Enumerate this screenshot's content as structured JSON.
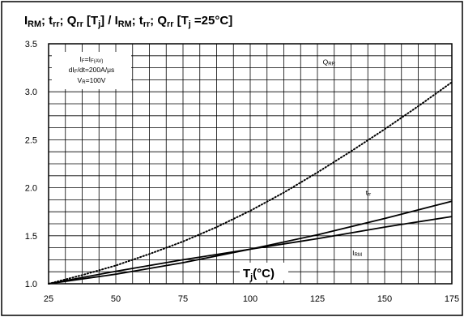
{
  "chart_data": {
    "type": "line",
    "title": {
      "parts": [
        {
          "t": "I"
        },
        {
          "t": "RM",
          "sub": true
        },
        {
          "t": "; t"
        },
        {
          "t": "rr",
          "sub": true
        },
        {
          "t": "; Q"
        },
        {
          "t": "rr",
          "sub": true
        },
        {
          "t": " [T"
        },
        {
          "t": "j",
          "sub": true
        },
        {
          "t": "] / I"
        },
        {
          "t": "RM",
          "sub": true
        },
        {
          "t": "; t"
        },
        {
          "t": "rr",
          "sub": true
        },
        {
          "t": "; Q"
        },
        {
          "t": "rr",
          "sub": true
        },
        {
          "t": " [T"
        },
        {
          "t": "j",
          "sub": true
        },
        {
          "t": " =25°C]"
        }
      ]
    },
    "xlabel": {
      "parts": [
        {
          "t": "T"
        },
        {
          "t": "j",
          "sub": true
        },
        {
          "t": "(°C)"
        }
      ]
    },
    "conditions": [
      [
        {
          "t": "I"
        },
        {
          "t": "F",
          "sub": true
        },
        {
          "t": "=I"
        },
        {
          "t": "F(AV)",
          "sub": true
        }
      ],
      [
        {
          "t": "dI"
        },
        {
          "t": "F",
          "sub": true
        },
        {
          "t": "/dt=200A/μs"
        }
      ],
      [
        {
          "t": "V"
        },
        {
          "t": "R",
          "sub": true
        },
        {
          "t": "=100V"
        }
      ]
    ],
    "xlim": [
      25,
      175
    ],
    "ylim": [
      1.0,
      3.5
    ],
    "x_ticks": [
      25,
      50,
      75,
      100,
      125,
      150,
      175
    ],
    "x_tick_labels": [
      "25",
      "50",
      "75",
      "100",
      "125",
      "150",
      "175"
    ],
    "y_ticks": [
      1.0,
      1.5,
      2.0,
      2.5,
      3.0,
      3.5
    ],
    "y_tick_labels": [
      "1.0",
      "1.5",
      "2.0",
      "2.5",
      "3.0",
      "3.5"
    ],
    "grid": true,
    "series": [
      {
        "id": "qrr",
        "label_parts": [
          {
            "t": "Q"
          },
          {
            "t": "RR",
            "sub": true
          }
        ],
        "style": "dotted",
        "x": [
          25,
          37.5,
          50,
          62.5,
          75,
          87.5,
          100,
          112.5,
          125,
          137.5,
          150,
          162.5,
          175
        ],
        "y": [
          1.0,
          1.09,
          1.19,
          1.31,
          1.44,
          1.59,
          1.76,
          1.95,
          2.16,
          2.38,
          2.61,
          2.85,
          3.1
        ]
      },
      {
        "id": "trr",
        "label_parts": [
          {
            "t": "t"
          },
          {
            "t": "rr",
            "sub": true
          }
        ],
        "style": "solid",
        "x": [
          25,
          50,
          75,
          100,
          125,
          150,
          175
        ],
        "y": [
          1.0,
          1.1,
          1.22,
          1.36,
          1.51,
          1.68,
          1.86
        ]
      },
      {
        "id": "irm",
        "label_parts": [
          {
            "t": "I"
          },
          {
            "t": "RM",
            "sub": true
          }
        ],
        "style": "solid",
        "x": [
          25,
          50,
          75,
          100,
          125,
          150,
          175
        ],
        "y": [
          1.0,
          1.13,
          1.25,
          1.36,
          1.47,
          1.59,
          1.7
        ]
      }
    ]
  }
}
